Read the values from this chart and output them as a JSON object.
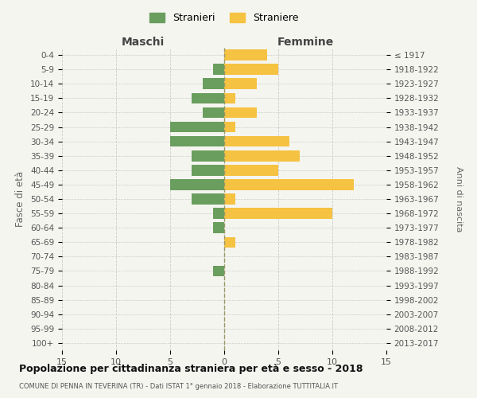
{
  "age_groups": [
    "0-4",
    "5-9",
    "10-14",
    "15-19",
    "20-24",
    "25-29",
    "30-34",
    "35-39",
    "40-44",
    "45-49",
    "50-54",
    "55-59",
    "60-64",
    "65-69",
    "70-74",
    "75-79",
    "80-84",
    "85-89",
    "90-94",
    "95-99",
    "100+"
  ],
  "birth_years": [
    "2013-2017",
    "2008-2012",
    "2003-2007",
    "1998-2002",
    "1993-1997",
    "1988-1992",
    "1983-1987",
    "1978-1982",
    "1973-1977",
    "1968-1972",
    "1963-1967",
    "1958-1962",
    "1953-1957",
    "1948-1952",
    "1943-1947",
    "1938-1942",
    "1933-1937",
    "1928-1932",
    "1923-1927",
    "1918-1922",
    "≤ 1917"
  ],
  "maschi": [
    0,
    1,
    2,
    3,
    2,
    5,
    5,
    3,
    3,
    5,
    3,
    1,
    1,
    0,
    0,
    1,
    0,
    0,
    0,
    0,
    0
  ],
  "femmine": [
    4,
    5,
    3,
    1,
    3,
    1,
    6,
    7,
    5,
    12,
    1,
    10,
    0,
    1,
    0,
    0,
    0,
    0,
    0,
    0,
    0
  ],
  "color_maschi": "#6a9e5e",
  "color_femmine": "#f5c242",
  "title": "Popolazione per cittadinanza straniera per età e sesso - 2018",
  "subtitle": "COMUNE DI PENNA IN TEVERINA (TR) - Dati ISTAT 1° gennaio 2018 - Elaborazione TUTTITALIA.IT",
  "legend_maschi": "Stranieri",
  "legend_femmine": "Straniere",
  "xlabel_maschi": "Maschi",
  "xlabel_femmine": "Femmine",
  "ylabel_left": "Fasce di età",
  "ylabel_right": "Anni di nascita",
  "xlim": 15,
  "background_color": "#f5f5f0",
  "gridcolor": "#cccccc"
}
